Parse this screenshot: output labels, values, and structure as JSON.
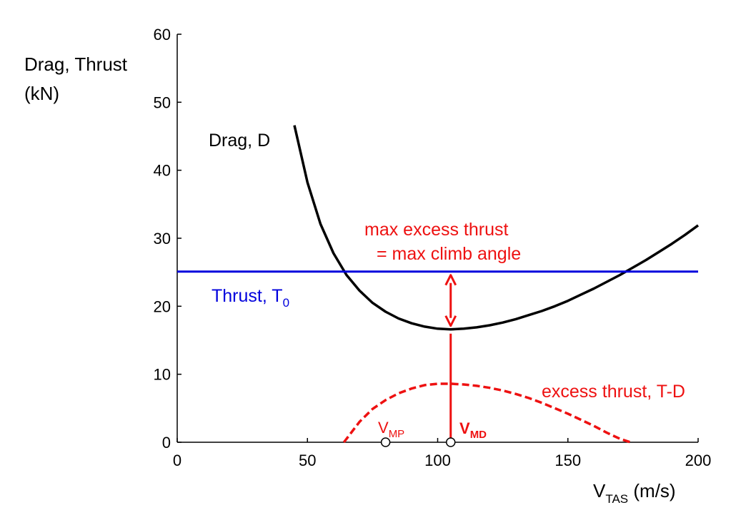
{
  "chart_data": {
    "type": "line",
    "ylabel_line1": "Drag, Thrust",
    "ylabel_line2": "(kN)",
    "xlabel_main": "V",
    "xlabel_sub": "TAS",
    "xlabel_unit": " (m/s)",
    "xlim": [
      0,
      200
    ],
    "ylim": [
      0,
      60
    ],
    "x_ticks": [
      0,
      50,
      100,
      150,
      200
    ],
    "y_ticks": [
      0,
      10,
      20,
      30,
      40,
      50,
      60
    ],
    "grid": false,
    "colors": {
      "drag": "#000000",
      "thrust": "#0000dd",
      "excess": "#ee1111"
    },
    "series": [
      {
        "name": "Drag, D",
        "style": "solid",
        "x": [
          45,
          50,
          55,
          60,
          65,
          70,
          75,
          80,
          85,
          90,
          95,
          100,
          105,
          110,
          115,
          120,
          125,
          130,
          135,
          140,
          145,
          150,
          155,
          160,
          165,
          170,
          175,
          180,
          185,
          190,
          195,
          200
        ],
        "values": [
          46.6,
          38.2,
          32.1,
          27.8,
          24.6,
          22.3,
          20.5,
          19.2,
          18.2,
          17.5,
          17.0,
          16.7,
          16.6,
          16.7,
          16.9,
          17.2,
          17.6,
          18.1,
          18.7,
          19.3,
          20.0,
          20.8,
          21.7,
          22.6,
          23.6,
          24.6,
          25.7,
          26.8,
          28.0,
          29.2,
          30.5,
          31.9
        ]
      },
      {
        "name": "Thrust, T",
        "name_sub": "0",
        "style": "solid",
        "x": [
          0,
          200
        ],
        "values": [
          25.1,
          25.1
        ]
      },
      {
        "name": "excess thrust, T-D",
        "style": "dashed",
        "x": [
          64,
          70,
          75,
          80,
          85,
          90,
          95,
          100,
          105,
          110,
          115,
          120,
          125,
          130,
          135,
          140,
          145,
          150,
          155,
          160,
          165,
          170,
          174
        ],
        "values": [
          0,
          3.0,
          4.9,
          6.2,
          7.2,
          7.9,
          8.4,
          8.6,
          8.6,
          8.5,
          8.3,
          8.0,
          7.6,
          7.1,
          6.5,
          5.8,
          5.0,
          4.2,
          3.3,
          2.4,
          1.4,
          0.5,
          0
        ]
      }
    ],
    "points": [
      {
        "label": "V",
        "label_sub": "MP",
        "x": 80,
        "y": 0
      },
      {
        "label": "V",
        "label_sub": "MD",
        "x": 105,
        "y": 0
      }
    ],
    "annotations": {
      "max_line1": "max excess thrust",
      "max_line2": "= max climb angle",
      "vmd_x": 105,
      "arrow_from": 16.6,
      "arrow_to": 25.1
    }
  }
}
